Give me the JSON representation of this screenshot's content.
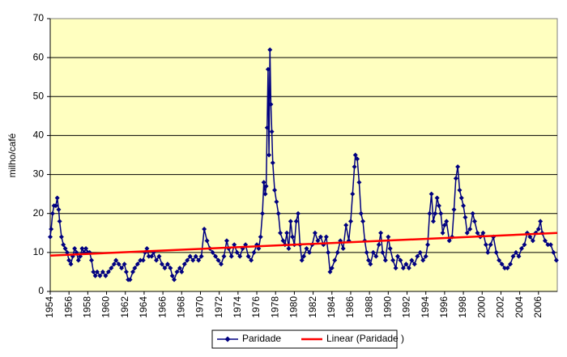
{
  "chart_data": {
    "type": "line",
    "y_label": "milho/café",
    "xlim": [
      1954,
      2008
    ],
    "xticks": [
      1954,
      1956,
      1958,
      1960,
      1962,
      1964,
      1966,
      1968,
      1970,
      1972,
      1974,
      1976,
      1978,
      1980,
      1982,
      1984,
      1986,
      1988,
      1990,
      1992,
      1994,
      1996,
      1998,
      2000,
      2002,
      2004,
      2006
    ],
    "ylim": [
      0,
      70
    ],
    "yticks": [
      0,
      10,
      20,
      30,
      40,
      50,
      60,
      70
    ],
    "grid": true,
    "legend": "bottom",
    "series": [
      {
        "name": "Paridade",
        "color": "#000080",
        "marker": "diamond",
        "x": [
          1954.0,
          1954.1,
          1954.25,
          1954.4,
          1954.6,
          1954.75,
          1954.9,
          1955.0,
          1955.2,
          1955.4,
          1955.6,
          1955.8,
          1956.0,
          1956.2,
          1956.4,
          1956.6,
          1956.8,
          1957.0,
          1957.2,
          1957.4,
          1957.6,
          1957.8,
          1958.0,
          1958.2,
          1958.4,
          1958.6,
          1958.8,
          1959.0,
          1959.3,
          1959.6,
          1959.9,
          1960.2,
          1960.5,
          1960.8,
          1961.0,
          1961.3,
          1961.6,
          1961.9,
          1962.1,
          1962.3,
          1962.5,
          1962.8,
          1963.0,
          1963.3,
          1963.6,
          1963.9,
          1964.1,
          1964.3,
          1964.5,
          1964.8,
          1965.0,
          1965.3,
          1965.6,
          1965.9,
          1966.2,
          1966.5,
          1966.8,
          1967.0,
          1967.2,
          1967.5,
          1967.8,
          1968.0,
          1968.3,
          1968.6,
          1968.9,
          1969.2,
          1969.5,
          1969.8,
          1970.1,
          1970.4,
          1970.7,
          1971.0,
          1971.3,
          1971.6,
          1971.9,
          1972.2,
          1972.5,
          1972.8,
          1973.0,
          1973.3,
          1973.6,
          1973.9,
          1974.2,
          1974.5,
          1974.8,
          1975.1,
          1975.4,
          1975.7,
          1976.0,
          1976.2,
          1976.4,
          1976.6,
          1976.75,
          1976.9,
          1977.0,
          1977.1,
          1977.2,
          1977.3,
          1977.35,
          1977.4,
          1977.5,
          1977.6,
          1977.7,
          1977.9,
          1978.1,
          1978.3,
          1978.5,
          1978.8,
          1979.0,
          1979.2,
          1979.4,
          1979.6,
          1979.8,
          1980.0,
          1980.2,
          1980.4,
          1980.6,
          1980.8,
          1981.0,
          1981.3,
          1981.6,
          1981.9,
          1982.2,
          1982.5,
          1982.8,
          1983.1,
          1983.4,
          1983.6,
          1983.8,
          1984.0,
          1984.3,
          1984.6,
          1984.9,
          1985.2,
          1985.5,
          1985.8,
          1986.0,
          1986.2,
          1986.4,
          1986.5,
          1986.7,
          1986.9,
          1987.1,
          1987.3,
          1987.5,
          1987.7,
          1987.9,
          1988.1,
          1988.4,
          1988.7,
          1989.0,
          1989.2,
          1989.4,
          1989.7,
          1990.0,
          1990.2,
          1990.5,
          1990.8,
          1991.0,
          1991.3,
          1991.6,
          1991.9,
          1992.2,
          1992.5,
          1992.8,
          1993.1,
          1993.4,
          1993.7,
          1994.0,
          1994.2,
          1994.4,
          1994.6,
          1994.8,
          1995.0,
          1995.2,
          1995.4,
          1995.6,
          1995.8,
          1996.0,
          1996.2,
          1996.5,
          1996.8,
          1997.0,
          1997.2,
          1997.4,
          1997.6,
          1997.8,
          1998.0,
          1998.2,
          1998.4,
          1998.7,
          1999.0,
          1999.2,
          1999.5,
          1999.8,
          2000.1,
          2000.4,
          2000.6,
          2000.9,
          2001.2,
          2001.5,
          2001.8,
          2002.1,
          2002.4,
          2002.7,
          2003.0,
          2003.3,
          2003.6,
          2003.9,
          2004.2,
          2004.5,
          2004.8,
          2005.1,
          2005.4,
          2005.7,
          2006.0,
          2006.2,
          2006.4,
          2006.7,
          2007.0,
          2007.3,
          2007.6,
          2007.9
        ],
        "values": [
          14,
          16,
          20,
          22,
          22,
          24,
          21,
          18,
          14,
          12,
          11,
          10,
          8,
          7,
          9,
          11,
          10,
          8,
          9,
          11,
          10,
          11,
          10,
          10,
          8,
          5,
          4,
          5,
          4,
          5,
          4,
          5,
          6,
          7,
          8,
          7,
          6,
          7,
          5,
          3,
          3,
          5,
          6,
          7,
          8,
          8,
          10,
          11,
          9,
          9,
          10,
          8,
          9,
          7,
          6,
          7,
          6,
          4,
          3,
          5,
          6,
          5,
          7,
          8,
          9,
          8,
          9,
          8,
          9,
          16,
          13,
          11,
          10,
          9,
          8,
          7,
          9,
          13,
          11,
          9,
          12,
          10,
          9,
          11,
          12,
          9,
          8,
          10,
          12,
          11,
          14,
          20,
          28,
          25,
          27,
          42,
          57,
          35,
          50,
          62,
          48,
          41,
          33,
          26,
          23,
          20,
          15,
          13,
          12,
          15,
          11,
          18,
          14,
          12,
          18,
          20,
          12,
          8,
          9,
          11,
          10,
          12,
          15,
          13,
          14,
          12,
          14,
          10,
          5,
          6,
          8,
          10,
          13,
          11,
          17,
          13,
          18,
          25,
          32,
          35,
          34,
          28,
          20,
          18,
          13,
          10,
          8,
          7,
          10,
          9,
          12,
          15,
          10,
          8,
          14,
          11,
          8,
          6,
          9,
          8,
          6,
          7,
          6,
          8,
          7,
          9,
          10,
          8,
          9,
          12,
          20,
          25,
          18,
          20,
          24,
          22,
          20,
          15,
          17,
          18,
          13,
          14,
          21,
          29,
          32,
          26,
          24,
          22,
          19,
          15,
          16,
          20,
          18,
          15,
          14,
          15,
          12,
          10,
          12,
          14,
          10,
          8,
          7,
          6,
          6,
          7,
          9,
          10,
          9,
          11,
          12,
          15,
          14,
          13,
          15,
          16,
          18,
          15,
          13,
          12,
          12,
          10,
          8
        ]
      },
      {
        "name": "Linear (Paridade )",
        "color": "#ff0000",
        "marker": "none",
        "x": [
          1954,
          2008
        ],
        "values": [
          9.2,
          15
        ]
      }
    ]
  }
}
